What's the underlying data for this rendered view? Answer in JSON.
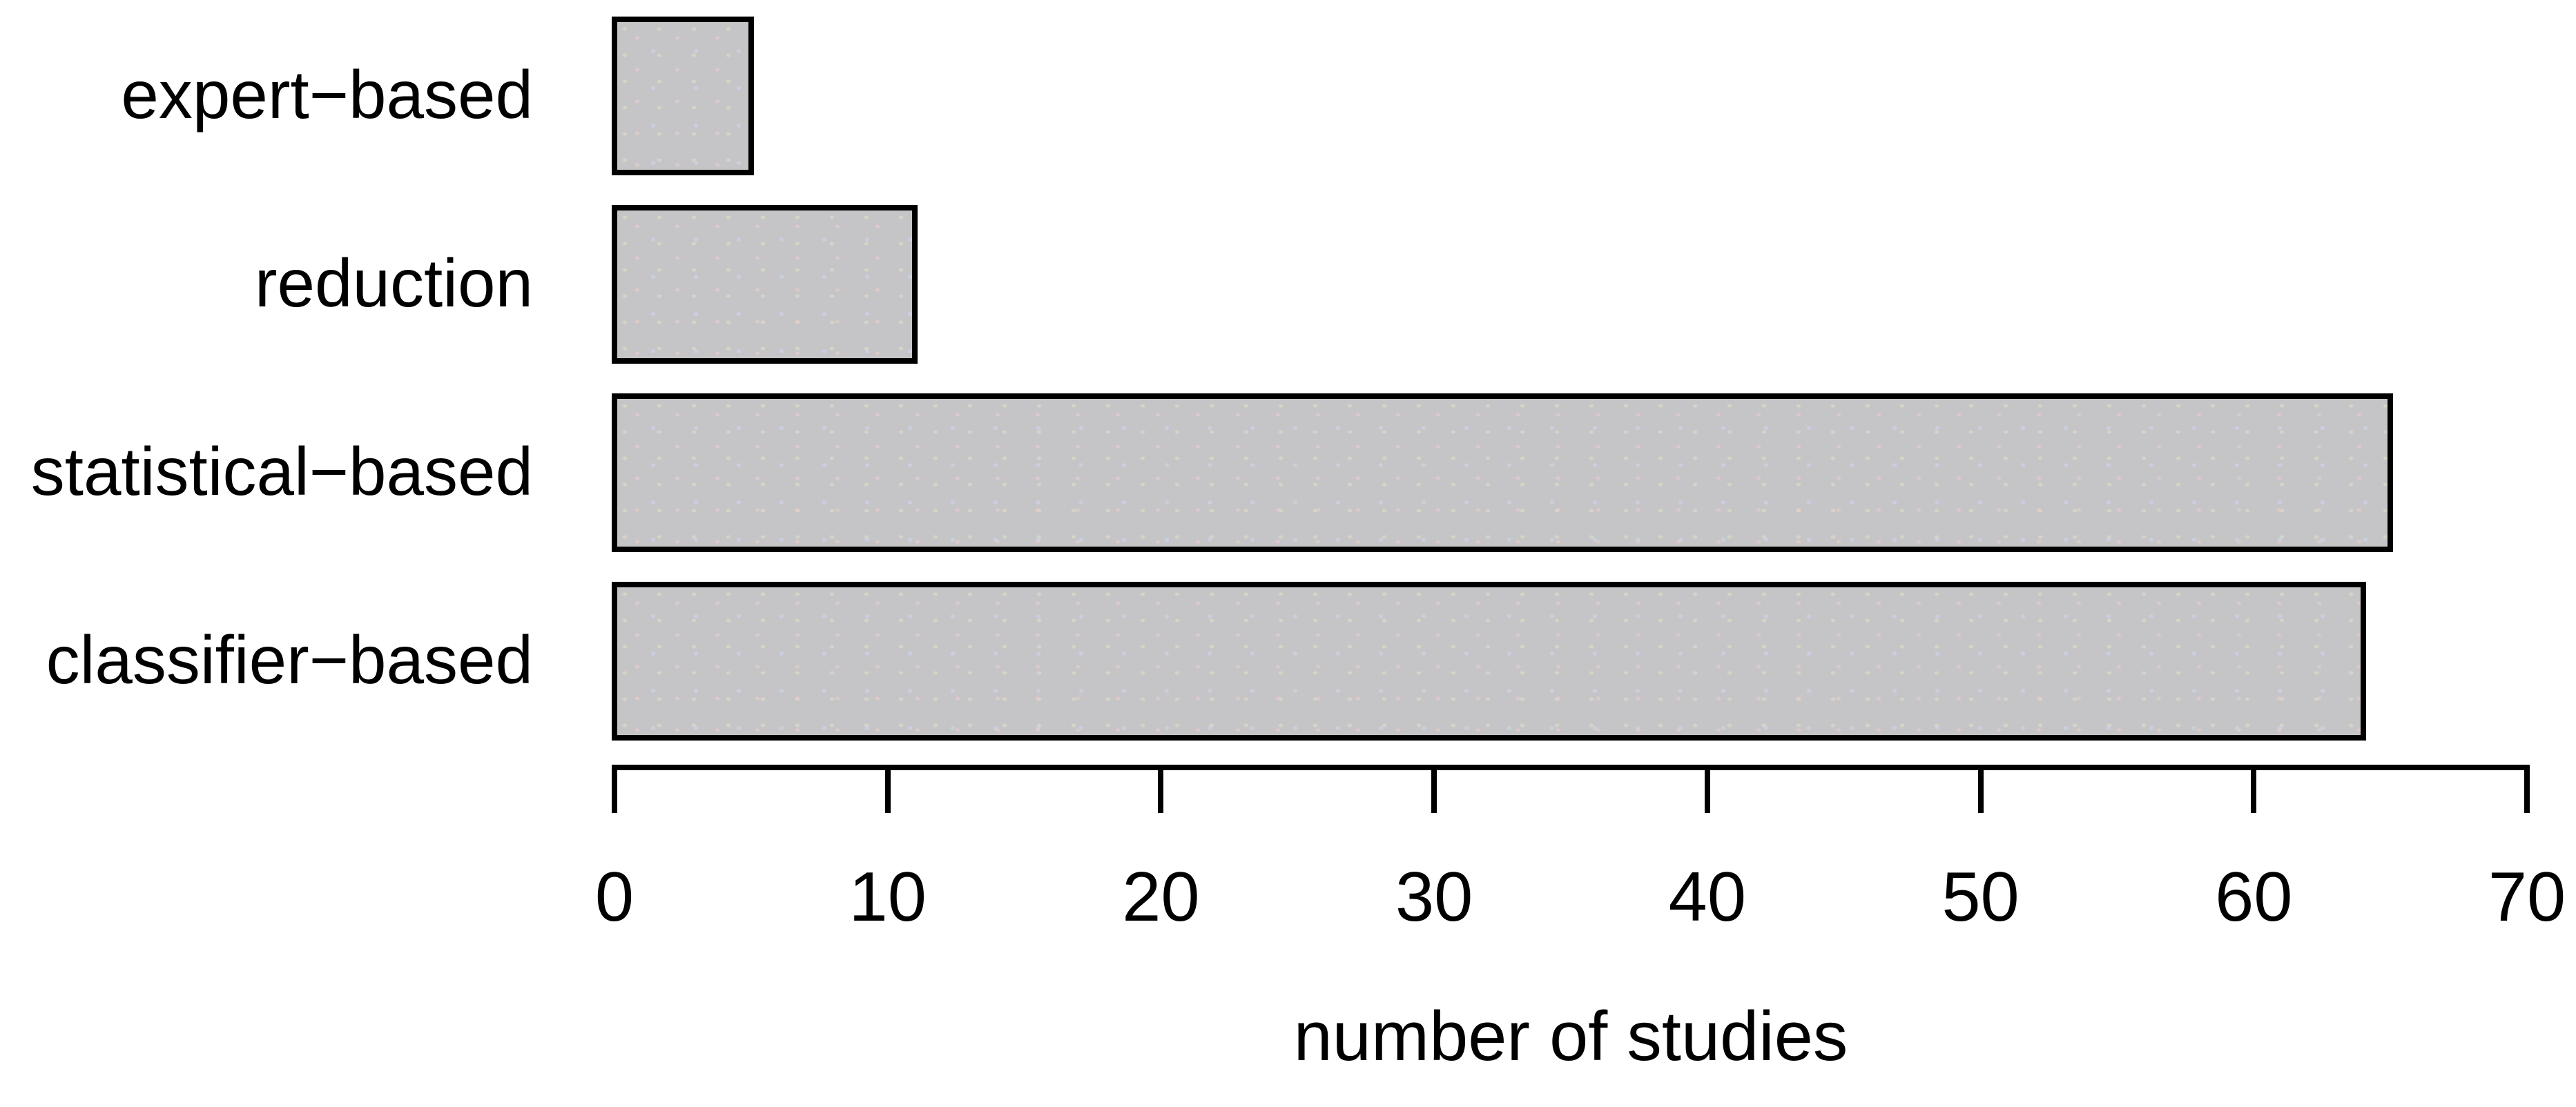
{
  "chart_data": {
    "type": "bar",
    "orientation": "horizontal",
    "categories_top_to_bottom": [
      "expert−based",
      "reduction",
      "statistical−based",
      "classifier−based"
    ],
    "values": [
      5,
      11,
      65,
      64
    ],
    "title": "",
    "xlabel": "number of studies",
    "ylabel": "",
    "xlim": [
      0,
      70
    ],
    "xticks": [
      0,
      10,
      20,
      30,
      40,
      50,
      60,
      70
    ],
    "grid": false,
    "legend": false,
    "bar_fill": "#c5c5c7",
    "bar_border": "#000000",
    "background": "#ffffff",
    "text_color": "#000000"
  }
}
